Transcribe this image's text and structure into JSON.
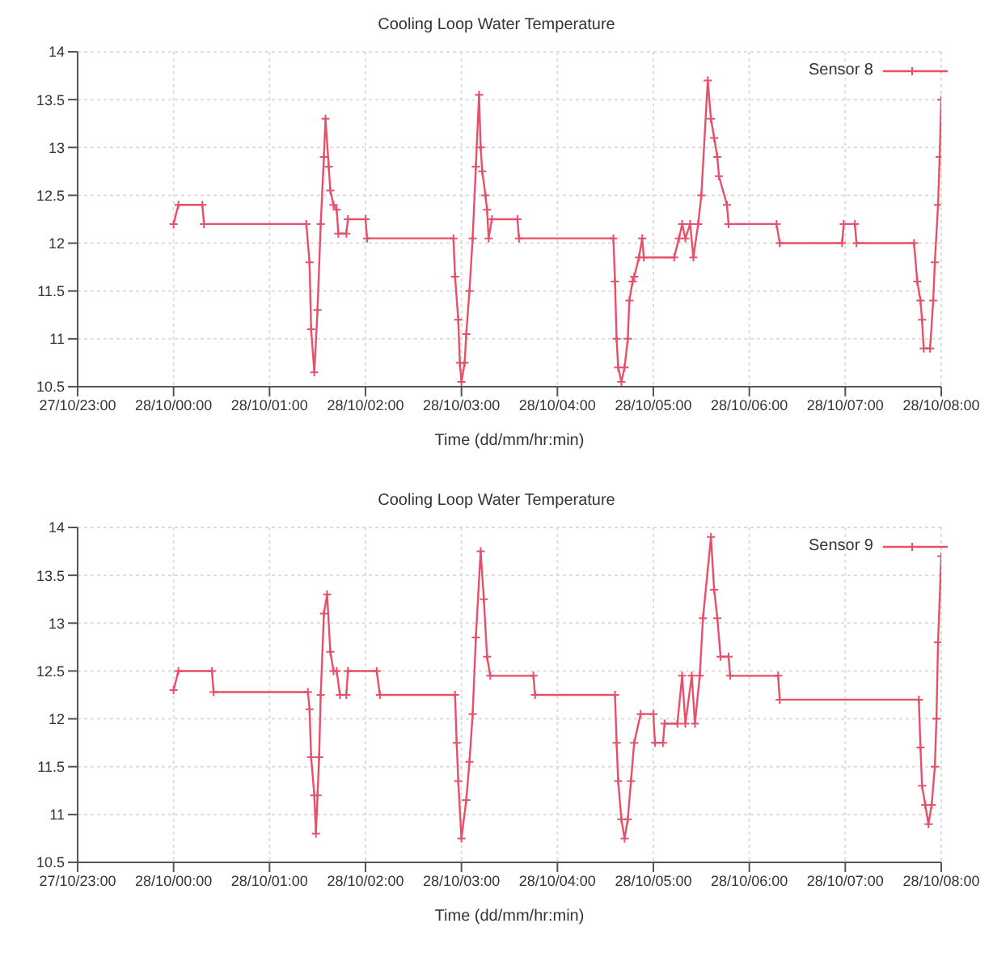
{
  "chart_data": [
    {
      "type": "line",
      "title": "Cooling Loop Water Temperature",
      "xlabel": "Time (dd/mm/hr:min)",
      "xlim": [
        "--10-27T23:00",
        "--10-28T08:00"
      ],
      "xticks": [
        {
          "value": "--10-27T23:00",
          "label": "27/10/23:00"
        },
        {
          "value": "--10-28T00:00",
          "label": "28/10/00:00"
        },
        {
          "value": "--10-28T01:00",
          "label": "28/10/01:00"
        },
        {
          "value": "--10-28T02:00",
          "label": "28/10/02:00"
        },
        {
          "value": "--10-28T03:00",
          "label": "28/10/03:00"
        },
        {
          "value": "--10-28T04:00",
          "label": "28/10/04:00"
        },
        {
          "value": "--10-28T05:00",
          "label": "28/10/05:00"
        },
        {
          "value": "--10-28T06:00",
          "label": "28/10/06:00"
        },
        {
          "value": "--10-28T07:00",
          "label": "28/10/07:00"
        },
        {
          "value": "--10-28T08:00",
          "label": "28/10/08:00"
        }
      ],
      "ylim": [
        10.5,
        14
      ],
      "yticks": [
        10.5,
        11,
        11.5,
        12,
        12.5,
        13,
        13.5,
        14
      ],
      "grid": true,
      "legend": "top right",
      "marker": "cross",
      "x": [
        "--10-28T00:00",
        "--10-28T00:03",
        "--10-28T00:18",
        "--10-28T00:19",
        "--10-28T01:23",
        "--10-28T01:25",
        "--10-28T01:26",
        "--10-28T01:28",
        "--10-28T01:30",
        "--10-28T01:32",
        "--10-28T01:34",
        "--10-28T01:35",
        "--10-28T01:37",
        "--10-28T01:38",
        "--10-28T01:40",
        "--10-28T01:42",
        "--10-28T01:43",
        "--10-28T01:48",
        "--10-28T01:49",
        "--10-28T02:00",
        "--10-28T02:01",
        "--10-28T02:55",
        "--10-28T02:56",
        "--10-28T02:58",
        "--10-28T02:59",
        "--10-28T03:00",
        "--10-28T03:02",
        "--10-28T03:03",
        "--10-28T03:05",
        "--10-28T03:07",
        "--10-28T03:09",
        "--10-28T03:11",
        "--10-28T03:12",
        "--10-28T03:13",
        "--10-28T03:15",
        "--10-28T03:16",
        "--10-28T03:17",
        "--10-28T03:19",
        "--10-28T03:35",
        "--10-28T03:36",
        "--10-28T04:35",
        "--10-28T04:36",
        "--10-28T04:37",
        "--10-28T04:38",
        "--10-28T04:40",
        "--10-28T04:42",
        "--10-28T04:44",
        "--10-28T04:45",
        "--10-28T04:47",
        "--10-28T04:48",
        "--10-28T04:51",
        "--10-28T04:53",
        "--10-28T04:54",
        "--10-28T05:13",
        "--10-28T05:16",
        "--10-28T05:18",
        "--10-28T05:20",
        "--10-28T05:23",
        "--10-28T05:25",
        "--10-28T05:28",
        "--10-28T05:30",
        "--10-28T05:34",
        "--10-28T05:36",
        "--10-28T05:38",
        "--10-28T05:40",
        "--10-28T05:41",
        "--10-28T05:46",
        "--10-28T05:47",
        "--10-28T06:17",
        "--10-28T06:19",
        "--10-28T06:58",
        "--10-28T06:59",
        "--10-28T07:06",
        "--10-28T07:07",
        "--10-28T07:43",
        "--10-28T07:45",
        "--10-28T07:47",
        "--10-28T07:48",
        "--10-28T07:49",
        "--10-28T07:53",
        "--10-28T07:55",
        "--10-28T07:56",
        "--10-28T07:58",
        "--10-28T07:59",
        "--10-28T08:00"
      ],
      "series": [
        {
          "name": "Sensor 8",
          "color": "#e8506a",
          "values": [
            12.2,
            12.4,
            12.4,
            12.2,
            12.2,
            11.8,
            11.1,
            10.65,
            11.3,
            12.2,
            12.9,
            13.3,
            12.8,
            12.55,
            12.4,
            12.35,
            12.1,
            12.1,
            12.25,
            12.25,
            12.05,
            12.05,
            11.65,
            11.2,
            10.75,
            10.55,
            10.75,
            11.05,
            11.5,
            12.05,
            12.8,
            13.55,
            13.0,
            12.75,
            12.5,
            12.35,
            12.05,
            12.25,
            12.25,
            12.05,
            12.05,
            11.6,
            11.0,
            10.7,
            10.55,
            10.7,
            11.0,
            11.4,
            11.6,
            11.65,
            11.85,
            12.05,
            11.85,
            11.85,
            12.05,
            12.2,
            12.05,
            12.2,
            11.85,
            12.2,
            12.5,
            13.7,
            13.3,
            13.1,
            12.9,
            12.7,
            12.4,
            12.2,
            12.2,
            12.0,
            12.0,
            12.2,
            12.2,
            12.0,
            12.0,
            11.6,
            11.4,
            11.2,
            10.9,
            10.9,
            11.4,
            11.8,
            12.4,
            12.9,
            13.5
          ]
        }
      ]
    },
    {
      "type": "line",
      "title": "Cooling Loop Water Temperature",
      "xlabel": "Time (dd/mm/hr:min)",
      "xlim": [
        "--10-27T23:00",
        "--10-28T08:00"
      ],
      "xticks": [
        {
          "value": "--10-27T23:00",
          "label": "27/10/23:00"
        },
        {
          "value": "--10-28T00:00",
          "label": "28/10/00:00"
        },
        {
          "value": "--10-28T01:00",
          "label": "28/10/01:00"
        },
        {
          "value": "--10-28T02:00",
          "label": "28/10/02:00"
        },
        {
          "value": "--10-28T03:00",
          "label": "28/10/03:00"
        },
        {
          "value": "--10-28T04:00",
          "label": "28/10/04:00"
        },
        {
          "value": "--10-28T05:00",
          "label": "28/10/05:00"
        },
        {
          "value": "--10-28T06:00",
          "label": "28/10/06:00"
        },
        {
          "value": "--10-28T07:00",
          "label": "28/10/07:00"
        },
        {
          "value": "--10-28T08:00",
          "label": "28/10/08:00"
        }
      ],
      "ylim": [
        10.5,
        14
      ],
      "yticks": [
        10.5,
        11,
        11.5,
        12,
        12.5,
        13,
        13.5,
        14
      ],
      "grid": true,
      "legend": "top right",
      "marker": "cross",
      "x": [
        "--10-28T00:00",
        "--10-28T00:03",
        "--10-28T00:24",
        "--10-28T00:25",
        "--10-28T01:24",
        "--10-28T01:25",
        "--10-28T01:26",
        "--10-28T01:28",
        "--10-28T01:29",
        "--10-28T01:30",
        "--10-28T01:31",
        "--10-28T01:32",
        "--10-28T01:34",
        "--10-28T01:36",
        "--10-28T01:38",
        "--10-28T01:40",
        "--10-28T01:42",
        "--10-28T01:44",
        "--10-28T01:48",
        "--10-28T01:49",
        "--10-28T02:07",
        "--10-28T02:09",
        "--10-28T02:56",
        "--10-28T02:57",
        "--10-28T02:58",
        "--10-28T03:00",
        "--10-28T03:03",
        "--10-28T03:05",
        "--10-28T03:07",
        "--10-28T03:09",
        "--10-28T03:12",
        "--10-28T03:14",
        "--10-28T03:16",
        "--10-28T03:18",
        "--10-28T03:45",
        "--10-28T03:46",
        "--10-28T04:36",
        "--10-28T04:37",
        "--10-28T04:38",
        "--10-28T04:40",
        "--10-28T04:42",
        "--10-28T04:44",
        "--10-28T04:46",
        "--10-28T04:48",
        "--10-28T04:52",
        "--10-28T05:00",
        "--10-28T05:01",
        "--10-28T05:06",
        "--10-28T05:07",
        "--10-28T05:15",
        "--10-28T05:18",
        "--10-28T05:20",
        "--10-28T05:24",
        "--10-28T05:26",
        "--10-28T05:29",
        "--10-28T05:31",
        "--10-28T05:36",
        "--10-28T05:38",
        "--10-28T05:40",
        "--10-28T05:42",
        "--10-28T05:47",
        "--10-28T05:48",
        "--10-28T06:18",
        "--10-28T06:19",
        "--10-28T07:46",
        "--10-28T07:47",
        "--10-28T07:48",
        "--10-28T07:50",
        "--10-28T07:52",
        "--10-28T07:54",
        "--10-28T07:56",
        "--10-28T07:57",
        "--10-28T07:58",
        "--10-28T08:00"
      ],
      "series": [
        {
          "name": "Sensor 9",
          "color": "#e8506a",
          "values": [
            12.3,
            12.5,
            12.5,
            12.28,
            12.28,
            12.1,
            11.6,
            11.2,
            10.8,
            11.2,
            11.6,
            12.25,
            13.1,
            13.3,
            12.7,
            12.5,
            12.5,
            12.25,
            12.25,
            12.5,
            12.5,
            12.25,
            12.25,
            11.75,
            11.35,
            10.75,
            11.15,
            11.55,
            12.05,
            12.85,
            13.75,
            13.25,
            12.65,
            12.45,
            12.45,
            12.25,
            12.25,
            11.75,
            11.35,
            10.95,
            10.75,
            10.95,
            11.35,
            11.75,
            12.05,
            12.05,
            11.75,
            11.75,
            11.95,
            11.95,
            12.45,
            11.95,
            12.45,
            11.95,
            12.45,
            13.05,
            13.9,
            13.35,
            13.05,
            12.65,
            12.65,
            12.45,
            12.45,
            12.2,
            12.2,
            11.7,
            11.3,
            11.1,
            10.9,
            11.1,
            11.5,
            12.0,
            12.8,
            13.7
          ]
        }
      ]
    }
  ]
}
